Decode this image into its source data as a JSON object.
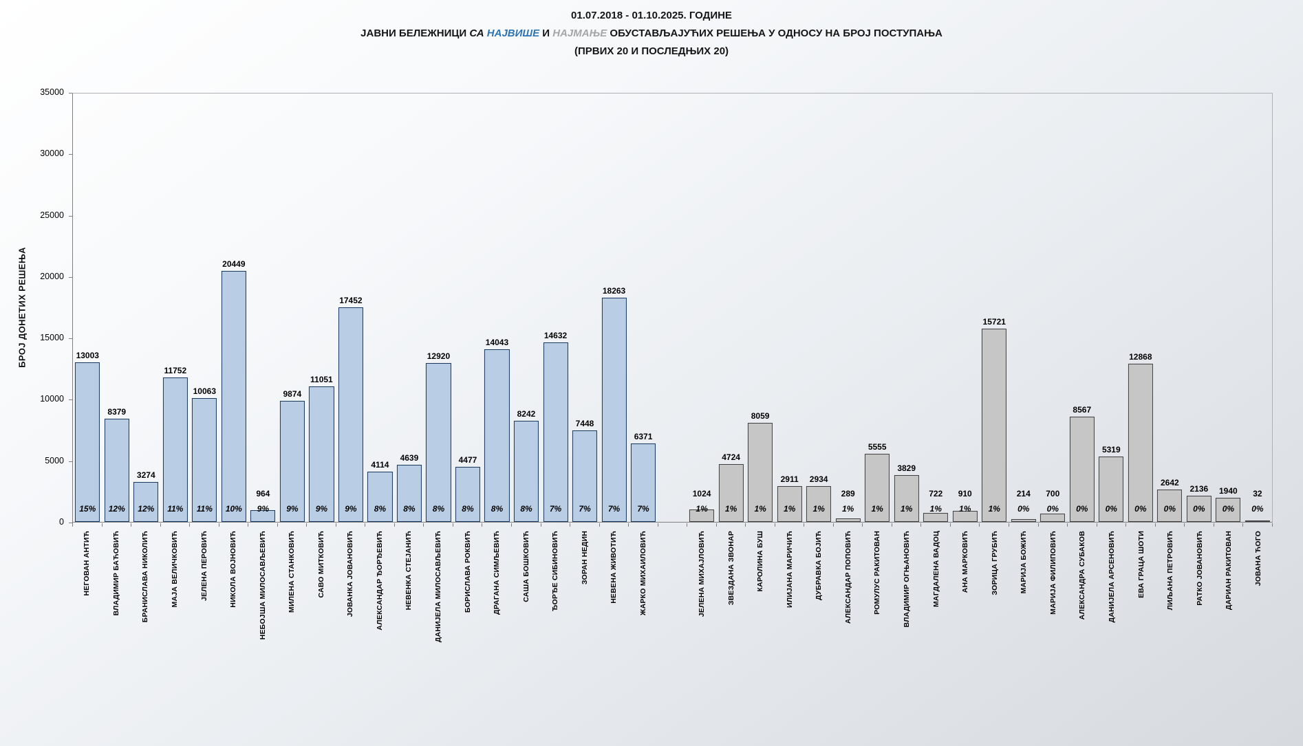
{
  "title": {
    "line1": "01.07.2018 - 01.10.2025. ГОДИНЕ",
    "line2_parts": [
      {
        "text": "ЈАВНИ БЕЛЕЖНИЦИ ",
        "style": "bold"
      },
      {
        "text": "СА ",
        "style": "bold-italic"
      },
      {
        "text": "НАЈВИШЕ",
        "style": "bold-italic-blue"
      },
      {
        "text": " И ",
        "style": "bold"
      },
      {
        "text": "НАЈМАЊЕ",
        "style": "bold-italic-gray"
      },
      {
        "text": " ОБУСТАВЉАЈУЋИХ РЕШЕЊА У ОДНОСУ НА БРОЈ ПОСТУПАЊА",
        "style": "bold"
      }
    ],
    "line3": "(ПРВИХ 20 И ПОСЛЕДЊИХ 20)"
  },
  "colors": {
    "top_bar_fill": "#b9cde4",
    "top_bar_border": "#17375d",
    "bottom_bar_fill": "#c6c6c6",
    "bottom_bar_border": "#3f3f3f",
    "highlight_blue": "#2e74b5",
    "highlight_gray": "#a6a6a6",
    "axis": "#808080"
  },
  "chart_data": {
    "type": "bar",
    "title": "ЈАВНИ БЕЛЕЖНИЦИ СА НАЈВИШЕ И НАЈМАЊЕ ОБУСТАВЉАЈУЋИХ РЕШЕЊА У ОДНОСУ НА БРОЈ ПОСТУПАЊА (ПРВИХ 20 И ПОСЛЕДЊИХ 20)",
    "subtitle": "01.07.2018 - 01.10.2025. ГОДИНЕ",
    "xlabel": "",
    "ylabel": "БРОЈ ДОНЕТИХ РЕШЕЊА",
    "ylim": [
      0,
      35000
    ],
    "yticks": [
      0,
      5000,
      10000,
      15000,
      20000,
      25000,
      30000,
      35000
    ],
    "grid": false,
    "legend": "none",
    "groups": [
      {
        "name": "first-20",
        "bars": [
          {
            "label": "НЕГОВАН АНТИЋ",
            "value": 13003,
            "percent": "15%"
          },
          {
            "label": "ВЛАДИМИР БАЋОВИЋ",
            "value": 8379,
            "percent": "12%"
          },
          {
            "label": "БРАНИСЛАВА НИКОЛИЋ",
            "value": 3274,
            "percent": "12%"
          },
          {
            "label": "МАЈА ВЕЛИЧКОВИЋ",
            "value": 11752,
            "percent": "11%"
          },
          {
            "label": "ЈЕЛЕНА ПЕРОВИЋ",
            "value": 10063,
            "percent": "11%"
          },
          {
            "label": "НИКОЛА ВОЈНОВИЋ",
            "value": 20449,
            "percent": "10%"
          },
          {
            "label": "НЕБОЈША МИЛОСАВЉЕВИЋ",
            "value": 964,
            "percent": "9%"
          },
          {
            "label": "МИЛЕНА СТАНКОВИЋ",
            "value": 9874,
            "percent": "9%"
          },
          {
            "label": "САВО МИТКОВИЋ",
            "value": 11051,
            "percent": "9%"
          },
          {
            "label": "ЈОВАНКА ЈОВАНОВИЋ",
            "value": 17452,
            "percent": "9%"
          },
          {
            "label": "АЛЕКСАНДАР ЂОРЂЕВИЋ",
            "value": 4114,
            "percent": "8%"
          },
          {
            "label": "НЕВЕНКА СТЕЈАНИЋ",
            "value": 4639,
            "percent": "8%"
          },
          {
            "label": "ДАНИЈЕЛА МИЛОСАВЉЕВИЋ",
            "value": 12920,
            "percent": "8%"
          },
          {
            "label": "БОРИСЛАВА РОКВИЋ",
            "value": 4477,
            "percent": "8%"
          },
          {
            "label": "ДРАГАНА СИМЉЕВИЋ",
            "value": 14043,
            "percent": "8%"
          },
          {
            "label": "САША БОШКОВИЋ",
            "value": 8242,
            "percent": "8%"
          },
          {
            "label": "ЂОРЂЕ СИБИНОВИЋ",
            "value": 14632,
            "percent": "7%"
          },
          {
            "label": "ЗОРАН НЕДИН",
            "value": 7448,
            "percent": "7%"
          },
          {
            "label": "НЕВЕНА ЖИВОТИЋ",
            "value": 18263,
            "percent": "7%"
          },
          {
            "label": "ЖАРКО МИХАИЛОВИЋ",
            "value": 6371,
            "percent": "7%"
          }
        ]
      },
      {
        "name": "last-20",
        "bars": [
          {
            "label": "ЈЕЛЕНА МИХАЈЛОВИЋ",
            "value": 1024,
            "percent": "1%"
          },
          {
            "label": "ЗВЕЗДАНА ЗВОНАР",
            "value": 4724,
            "percent": "1%"
          },
          {
            "label": "КАРОЛИНА БУШ",
            "value": 8059,
            "percent": "1%"
          },
          {
            "label": "ИЛИЈАНА МАРИЧИЋ",
            "value": 2911,
            "percent": "1%"
          },
          {
            "label": "ДУБРАВКА БОЈИЋ",
            "value": 2934,
            "percent": "1%"
          },
          {
            "label": "АЛЕКСАНДАР ПОПОВИЋ",
            "value": 289,
            "percent": "1%"
          },
          {
            "label": "РОМУЛУС РАКИТОВАН",
            "value": 5555,
            "percent": "1%"
          },
          {
            "label": "ВЛАДИМИР ОГЊАНОВИЋ",
            "value": 3829,
            "percent": "1%"
          },
          {
            "label": "МАГДАЛЕНА ВАДОЦ",
            "value": 722,
            "percent": "1%"
          },
          {
            "label": "АНА МАРКОВИЋ",
            "value": 910,
            "percent": "1%"
          },
          {
            "label": "ЗОРИЦА ГРУБИЋ",
            "value": 15721,
            "percent": "1%"
          },
          {
            "label": "МАРИЈА БОЖИЋ",
            "value": 214,
            "percent": "0%"
          },
          {
            "label": "МАРИЈА ФИЛИПОВИЋ",
            "value": 700,
            "percent": "0%"
          },
          {
            "label": "АЛЕКСАНДРА СУБАКОВ",
            "value": 8567,
            "percent": "0%"
          },
          {
            "label": "ДАНИЈЕЛА АРСЕНОВИЋ",
            "value": 5319,
            "percent": "0%"
          },
          {
            "label": "ЕВА ГРАЦА ШОТИ",
            "value": 12868,
            "percent": "0%"
          },
          {
            "label": "ЛИЉАНА ПЕТРОВИЋ",
            "value": 2642,
            "percent": "0%"
          },
          {
            "label": "РАТКО ЈОВАНОВИЋ",
            "value": 2136,
            "percent": "0%"
          },
          {
            "label": "ДАРИАН РАКИТОВАН",
            "value": 1940,
            "percent": "0%"
          },
          {
            "label": "ЈОВАНА ЋОГО",
            "value": 32,
            "percent": "0%"
          }
        ]
      }
    ]
  }
}
